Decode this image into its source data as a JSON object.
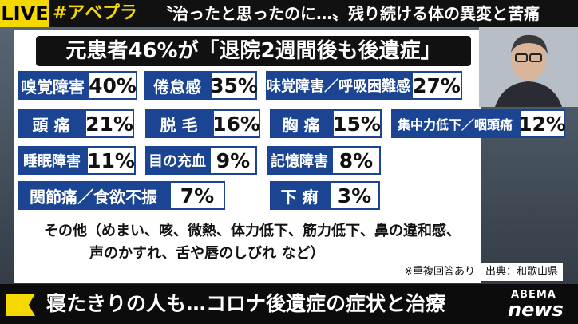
{
  "top_bar": {
    "live": "LIVE",
    "hashtag": "#アベプラ",
    "headline": "〝治ったと思ったのに…〟残り続ける体の異変と苦痛"
  },
  "board": {
    "title": "元患者46%が「退院2週間後も後遺症」",
    "items": [
      {
        "label": "嗅覚障害",
        "percent": "40%"
      },
      {
        "label": "倦怠感",
        "percent": "35%"
      },
      {
        "label": "味覚障害／呼吸困難感",
        "percent": "27%"
      },
      {
        "label": "頭 痛",
        "percent": "21%"
      },
      {
        "label": "脱 毛",
        "percent": "16%"
      },
      {
        "label": "胸 痛",
        "percent": "15%"
      },
      {
        "label": "集中力低下／咽頭痛",
        "percent": "12%"
      },
      {
        "label": "睡眠障害",
        "percent": "11%"
      },
      {
        "label": "目の充血",
        "percent": "9%"
      },
      {
        "label": "記憶障害",
        "percent": "8%"
      },
      {
        "label": "関節痛／食欲不振",
        "percent": "7%"
      },
      {
        "label": "下 痢",
        "percent": "3%"
      }
    ],
    "other_lines": [
      "その他（めまい、咳、微熱、体力低下、筋力低下、鼻の違和感、",
      "声のかすれ、舌や唇のしびれ など）"
    ],
    "note": "※重複回答あり　出典：和歌山県"
  },
  "caption": "寝たきりの人も…コロナ後遺症の症状と治療",
  "logo": {
    "brand": "ABEMA",
    "name": "news"
  }
}
